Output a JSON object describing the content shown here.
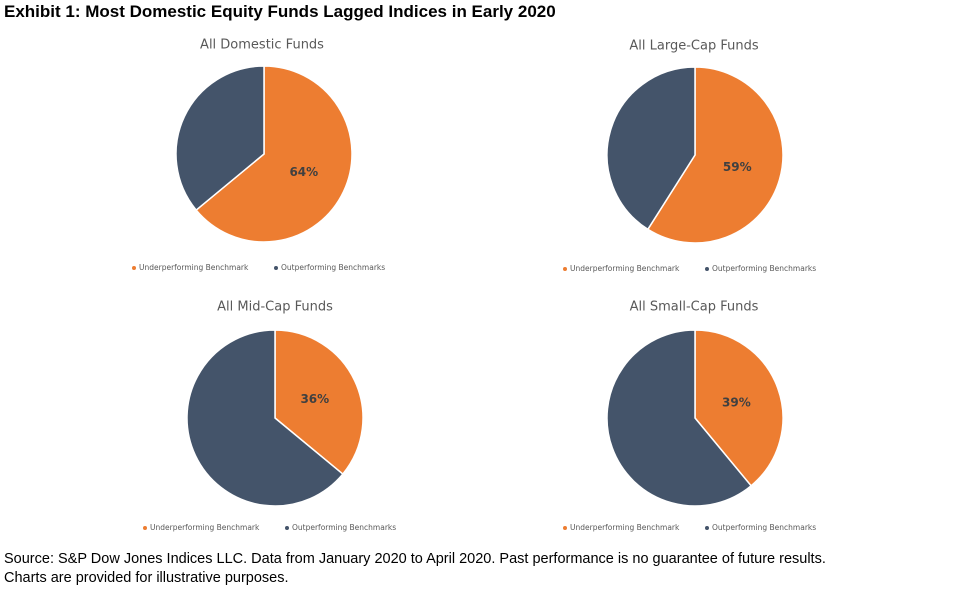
{
  "title": "Exhibit 1: Most Domestic Equity Funds Lagged Indices in Early 2020",
  "notes": [
    "Source: S&P Dow Jones Indices LLC. Data from January 2020 to April 2020. Past performance is no guarantee of future results.",
    "Charts are provided for illustrative purposes."
  ],
  "chart_data": [
    {
      "type": "pie",
      "title": "All Domestic Funds",
      "categories": [
        "Underperforming Benchmark",
        "Outperforming Benchmarks"
      ],
      "values": [
        64,
        36
      ],
      "value_labels": [
        "64%",
        null
      ],
      "colors": [
        "#ed7d31",
        "#44546a"
      ]
    },
    {
      "type": "pie",
      "title": "All Large-Cap Funds",
      "categories": [
        "Underperforming Benchmark",
        "Outperforming Benchmarks"
      ],
      "values": [
        59,
        41
      ],
      "value_labels": [
        "59%",
        null
      ],
      "colors": [
        "#ed7d31",
        "#44546a"
      ]
    },
    {
      "type": "pie",
      "title": "All Mid-Cap Funds",
      "categories": [
        "Underperforming Benchmark",
        "Outperforming Benchmarks"
      ],
      "values": [
        36,
        64
      ],
      "value_labels": [
        "36%",
        null
      ],
      "colors": [
        "#ed7d31",
        "#44546a"
      ]
    },
    {
      "type": "pie",
      "title": "All Small-Cap Funds",
      "categories": [
        "Underperforming Benchmark",
        "Outperforming Benchmarks"
      ],
      "values": [
        39,
        61
      ],
      "value_labels": [
        "39%",
        null
      ],
      "colors": [
        "#ed7d31",
        "#44546a"
      ]
    }
  ]
}
